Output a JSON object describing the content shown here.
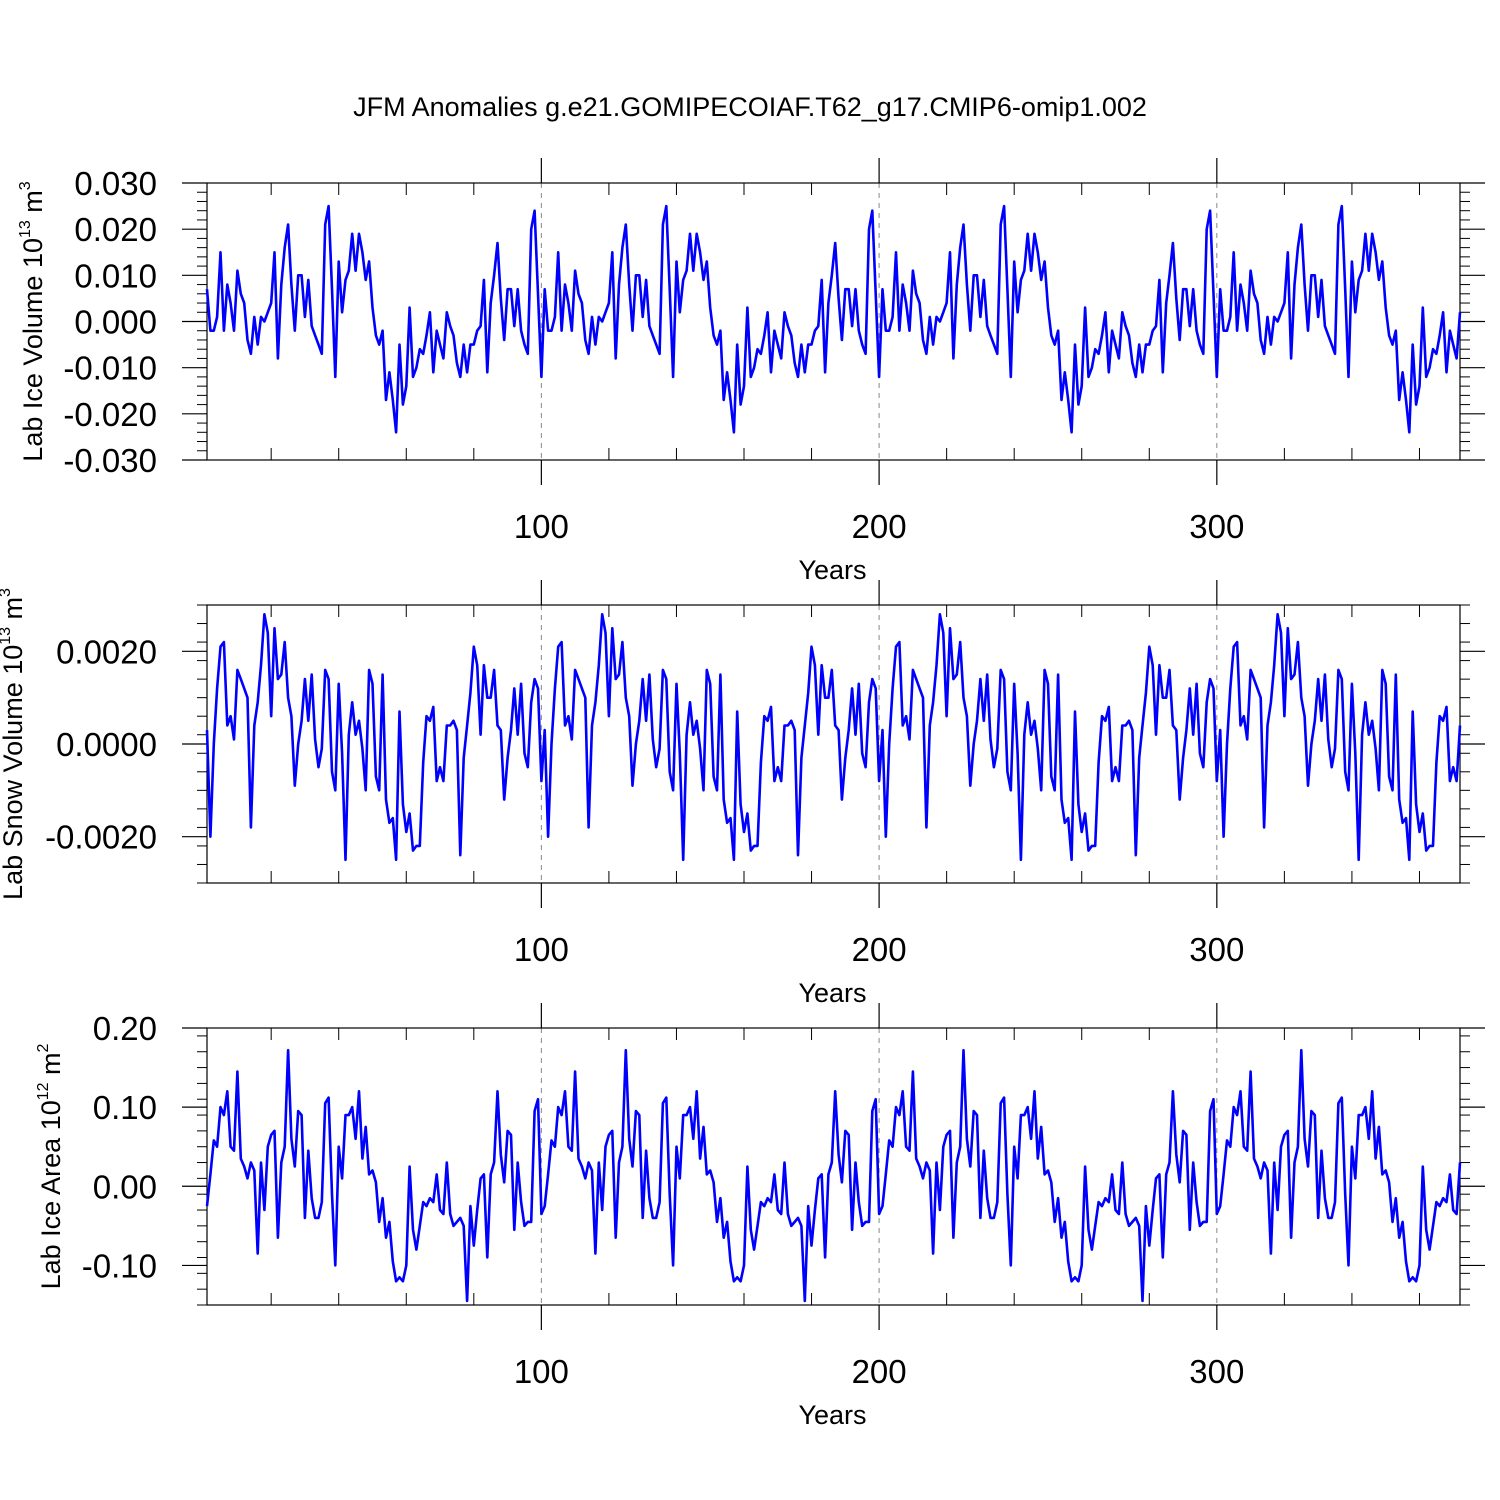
{
  "title": "JFM Anomalies g.e21.GOMIPECOIAF.T62_g17.CMIP6-omip1.002",
  "line_color": "#0000ff",
  "chart_data": [
    {
      "type": "line",
      "ylabel_main": "Lab Ice Volume 10",
      "ylabel_exp": "13",
      "ylabel_unit": "m",
      "ylabel_unit_exp": "3",
      "xlabel": "Years",
      "xlim": [
        1,
        372
      ],
      "ylim": [
        -0.03,
        0.03
      ],
      "yticks": [
        -0.03,
        -0.02,
        -0.01,
        0.0,
        0.01,
        0.02,
        0.03
      ],
      "ytick_labels": [
        "-0.030",
        "-0.020",
        "-0.010",
        "0.000",
        "0.010",
        "0.020",
        "0.030"
      ],
      "xticks": [
        100,
        200,
        300
      ],
      "xtick_labels": [
        "100",
        "200",
        "300"
      ],
      "cycle": [
        0.007,
        -0.002,
        -0.002,
        0.001,
        0.015,
        -0.002,
        0.008,
        0.004,
        -0.002,
        0.011,
        0.006,
        0.004,
        -0.004,
        -0.007,
        0.001,
        -0.005,
        0.001,
        0.0,
        0.002,
        0.004,
        0.015,
        -0.008,
        0.008,
        0.016,
        0.021,
        0.008,
        -0.002,
        0.01,
        0.01,
        0.001,
        0.009,
        -0.001,
        -0.003,
        -0.005,
        -0.007,
        0.021,
        0.025,
        0.007,
        -0.012,
        0.013,
        0.002,
        0.009,
        0.011,
        0.019,
        0.011,
        0.019,
        0.015,
        0.009,
        0.013,
        0.003,
        -0.003,
        -0.005,
        -0.002,
        -0.017,
        -0.011,
        -0.017,
        -0.024,
        -0.005,
        -0.018,
        -0.014,
        0.003,
        -0.012,
        -0.01,
        -0.006,
        -0.007,
        -0.003,
        0.002,
        -0.011,
        -0.002,
        -0.005,
        -0.008,
        0.002,
        -0.001,
        -0.003,
        -0.009,
        -0.012,
        -0.005,
        -0.011,
        -0.005,
        -0.005,
        -0.002,
        -0.001,
        0.009,
        -0.011,
        0.004,
        0.01,
        0.017,
        0.005,
        -0.004,
        0.007,
        0.007,
        -0.001,
        0.007,
        -0.002,
        -0.005,
        -0.007,
        0.02,
        0.024,
        0.006,
        -0.012
      ]
    },
    {
      "type": "line",
      "ylabel_main": "Lab Snow Volume 10",
      "ylabel_exp": "13",
      "ylabel_unit": "m",
      "ylabel_unit_exp": "3",
      "xlabel": "Years",
      "xlim": [
        1,
        372
      ],
      "ylim": [
        -0.003,
        0.003
      ],
      "yticks": [
        -0.002,
        0.0,
        0.002
      ],
      "ytick_labels": [
        "-0.0020",
        "0.0000",
        "0.0020"
      ],
      "xticks": [
        100,
        200,
        300
      ],
      "xtick_labels": [
        "100",
        "200",
        "300"
      ],
      "cycle": [
        0.0003,
        -0.002,
        0.0,
        0.0012,
        0.0021,
        0.0022,
        0.0004,
        0.0006,
        0.0001,
        0.0016,
        0.0014,
        0.0012,
        0.001,
        -0.0018,
        0.0004,
        0.0009,
        0.0017,
        0.0028,
        0.0024,
        0.0006,
        0.0025,
        0.0014,
        0.0015,
        0.0022,
        0.001,
        0.0006,
        -0.0009,
        0.0,
        0.0005,
        0.0014,
        0.0005,
        0.0015,
        0.0001,
        -0.0005,
        -0.0001,
        0.0016,
        0.0014,
        -0.0006,
        -0.001,
        0.0013,
        -0.0002,
        -0.0025,
        0.0002,
        0.0009,
        0.0002,
        0.0005,
        -0.0001,
        -0.001,
        0.0016,
        0.0013,
        -0.0007,
        -0.001,
        0.0015,
        -0.0012,
        -0.0017,
        -0.0016,
        -0.0025,
        0.0007,
        -0.0013,
        -0.0019,
        -0.0015,
        -0.0023,
        -0.0022,
        -0.0022,
        -0.0004,
        0.0006,
        0.0005,
        0.0008,
        -0.0008,
        -0.0005,
        -0.0008,
        0.0004,
        0.0004,
        0.0005,
        0.0003,
        -0.0024,
        -0.0003,
        0.0004,
        0.0011,
        0.0021,
        0.0017,
        0.0002,
        0.0017,
        0.001,
        0.001,
        0.0016,
        0.0004,
        0.0003,
        -0.0012,
        -0.0003,
        0.0003,
        0.0012,
        0.0002,
        0.0013,
        -0.0002,
        -0.0005,
        0.0009,
        0.0014,
        0.0012,
        -0.0008
      ]
    },
    {
      "type": "line",
      "ylabel_main": "Lab Ice Area 10",
      "ylabel_exp": "12",
      "ylabel_unit": "m",
      "ylabel_unit_exp": "2",
      "xlabel": "Years",
      "xlim": [
        1,
        372
      ],
      "ylim": [
        -0.15,
        0.2
      ],
      "yticks": [
        -0.1,
        0.0,
        0.1,
        0.2
      ],
      "ytick_labels": [
        "-0.10",
        "0.00",
        "0.10",
        "0.20"
      ],
      "xticks": [
        100,
        200,
        300
      ],
      "xtick_labels": [
        "100",
        "200",
        "300"
      ],
      "cycle": [
        -0.025,
        0.015,
        0.058,
        0.05,
        0.1,
        0.09,
        0.12,
        0.05,
        0.045,
        0.145,
        0.035,
        0.025,
        0.01,
        0.03,
        0.02,
        -0.085,
        0.03,
        -0.03,
        0.05,
        0.065,
        0.07,
        -0.065,
        0.03,
        0.05,
        0.172,
        0.06,
        0.025,
        0.095,
        0.09,
        -0.04,
        0.045,
        -0.015,
        -0.04,
        -0.04,
        -0.02,
        0.105,
        0.112,
        -0.01,
        -0.1,
        0.05,
        0.01,
        0.09,
        0.09,
        0.1,
        0.06,
        0.12,
        0.035,
        0.075,
        0.015,
        0.02,
        0.005,
        -0.045,
        -0.015,
        -0.065,
        -0.045,
        -0.095,
        -0.12,
        -0.115,
        -0.12,
        -0.1,
        0.025,
        -0.055,
        -0.08,
        -0.05,
        -0.02,
        -0.025,
        -0.015,
        -0.02,
        0.015,
        -0.03,
        -0.035,
        0.03,
        -0.035,
        -0.05,
        -0.045,
        -0.04,
        -0.05,
        -0.145,
        -0.025,
        -0.075,
        -0.03,
        0.01,
        0.015,
        -0.09,
        0.015,
        0.03,
        0.12,
        0.04,
        0.005,
        0.07,
        0.065,
        -0.055,
        0.03,
        -0.02,
        -0.05,
        -0.045,
        -0.045,
        0.095,
        0.11,
        -0.035
      ]
    }
  ]
}
